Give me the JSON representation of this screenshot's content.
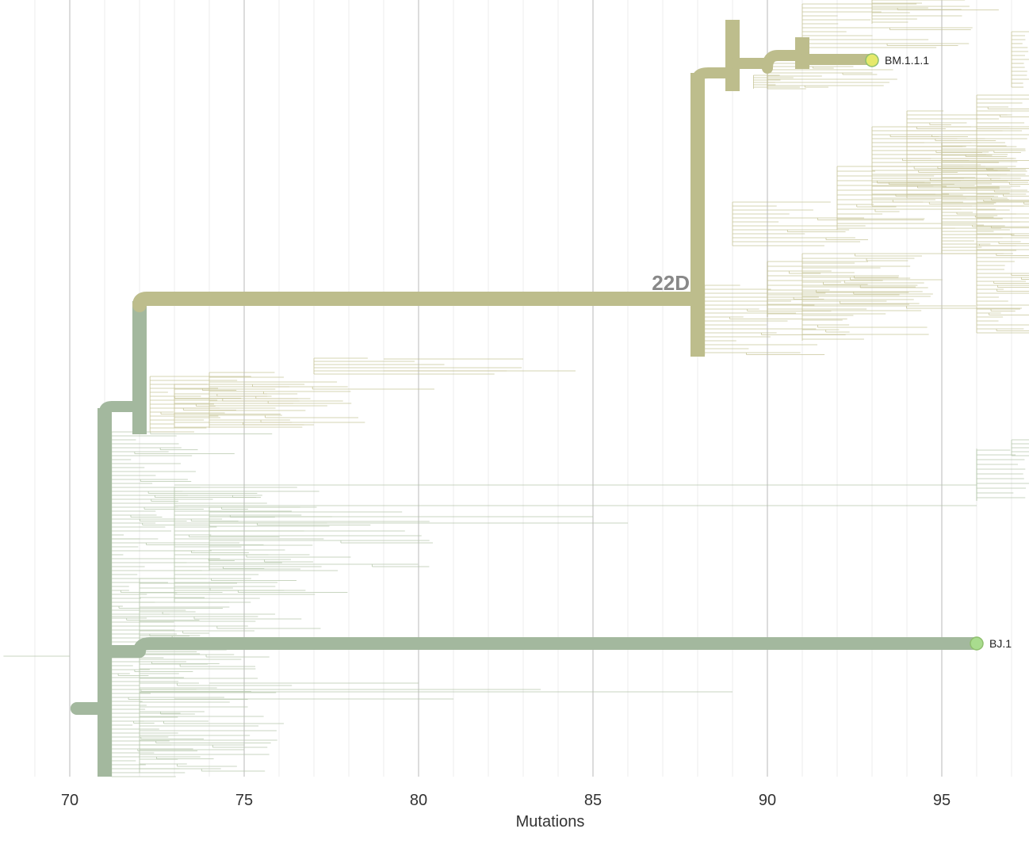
{
  "chart_data": {
    "type": "phylogenetic-tree",
    "title": "",
    "xlabel": "Mutations",
    "ylabel": "",
    "xlim": [
      68.1,
      97.5
    ],
    "x_ticks_major": [
      70,
      75,
      80,
      85,
      90,
      95
    ],
    "x_tick_labels": [
      "70",
      "75",
      "80",
      "85",
      "90",
      "95"
    ],
    "grid": true,
    "clade_labels": [
      {
        "name": "22D",
        "x": 88
      }
    ],
    "highlighted_tips": [
      {
        "name": "BM.1.1.1",
        "x": 93,
        "color": "#e6e96a"
      },
      {
        "name": "BJ.1",
        "x": 96,
        "color": "#a9dc8e"
      }
    ],
    "colors": {
      "clade_22d": "#bdbd8c",
      "clade_bj": "#a3b89e",
      "thin_branch_upper": "#c8c69a",
      "thin_branch_lower": "#b7c9ad",
      "grid_major": "#dcdcdc",
      "grid_minor": "#efefef"
    }
  }
}
